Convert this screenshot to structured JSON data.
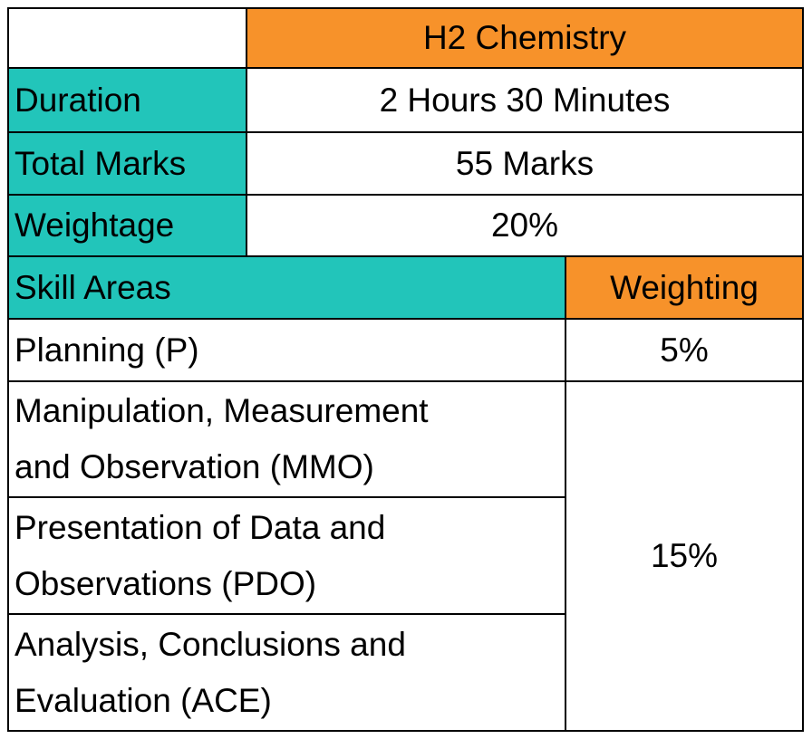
{
  "header": {
    "title": "H2 Chemistry"
  },
  "info": [
    {
      "label": "Duration",
      "value": "2 Hours 30 Minutes"
    },
    {
      "label": "Total Marks",
      "value": "55 Marks"
    },
    {
      "label": "Weightage",
      "value": "20%"
    }
  ],
  "skills": {
    "header": {
      "area": "Skill Areas",
      "weighting": "Weighting"
    },
    "rows": [
      {
        "lines": [
          "Planning (P)"
        ]
      },
      {
        "lines": [
          "Manipulation, Measurement",
          "and Observation (MMO)"
        ]
      },
      {
        "lines": [
          "Presentation of Data and",
          "Observations (PDO)"
        ]
      },
      {
        "lines": [
          "Analysis, Conclusions and",
          "Evaluation (ACE)"
        ]
      }
    ],
    "weightings": [
      "5%",
      "15%"
    ]
  }
}
